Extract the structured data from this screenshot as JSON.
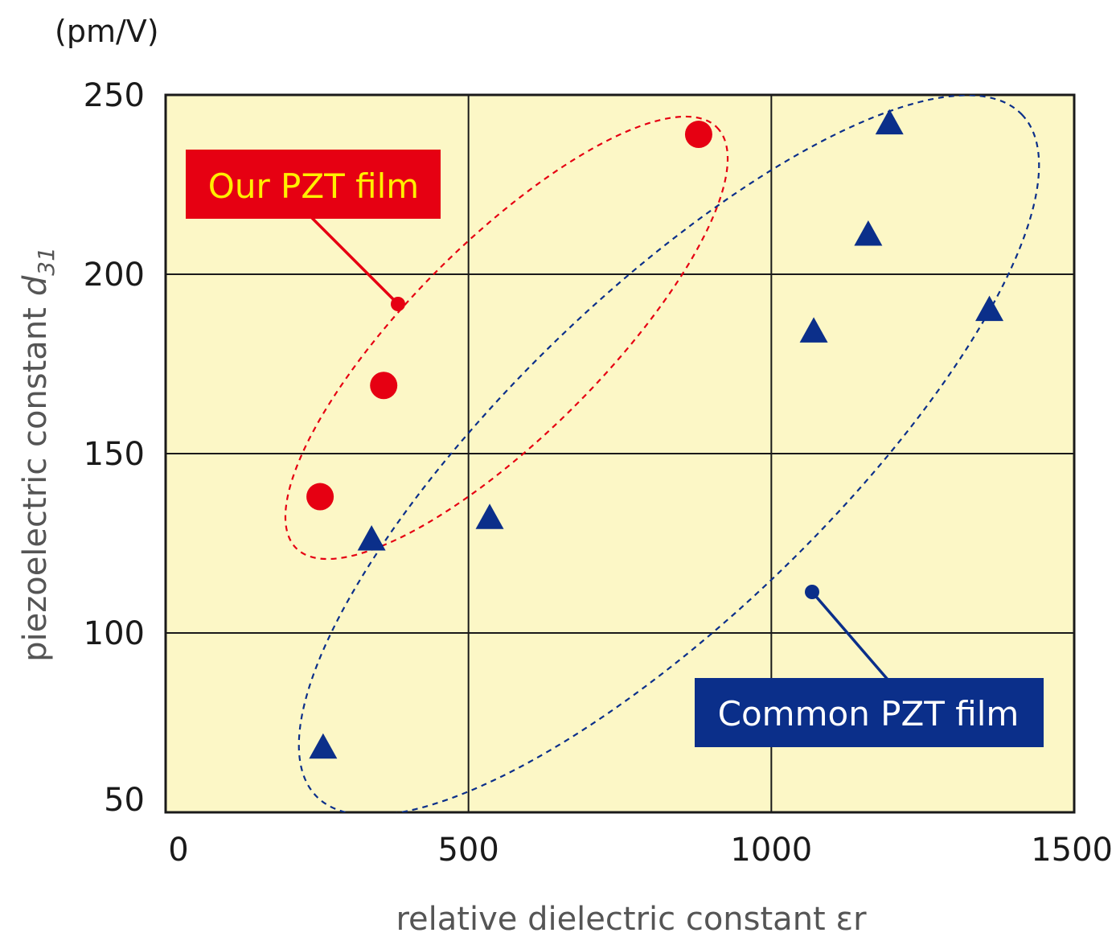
{
  "chart_data": {
    "type": "scatter",
    "unit_label": "(pm/V)",
    "xlabel": "relative dielectric constant εr",
    "ylabel_main": "piezoelectric constant",
    "ylabel_symbol": "d",
    "ylabel_subscript": "31",
    "xlim": [
      0,
      1500
    ],
    "ylim": [
      50,
      250
    ],
    "x_ticks": [
      0,
      500,
      1000,
      1500
    ],
    "y_ticks": [
      50,
      100,
      150,
      200,
      250
    ],
    "grid": true,
    "plot_background": "#fcf7c6",
    "series": [
      {
        "name": "Our PZT film",
        "marker": "circle",
        "color": "#e60012",
        "points": [
          {
            "x": 255,
            "y": 138
          },
          {
            "x": 360,
            "y": 169
          },
          {
            "x": 880,
            "y": 239
          }
        ]
      },
      {
        "name": "Common PZT film",
        "marker": "triangle",
        "color": "#0b2f8a",
        "points": [
          {
            "x": 260,
            "y": 68
          },
          {
            "x": 340,
            "y": 126
          },
          {
            "x": 535,
            "y": 132
          },
          {
            "x": 1070,
            "y": 184
          },
          {
            "x": 1160,
            "y": 211
          },
          {
            "x": 1195,
            "y": 242
          },
          {
            "x": 1360,
            "y": 190
          }
        ]
      }
    ],
    "callouts": [
      {
        "label": "Our PZT film",
        "background": "#e60012",
        "text_color": "#ffef00",
        "anchor": {
          "x": 385,
          "y": 191
        }
      },
      {
        "label": "Common PZT film",
        "background": "#0b2f8a",
        "text_color": "#ffffff",
        "anchor": {
          "x": 1065,
          "y": 112
        }
      }
    ]
  }
}
